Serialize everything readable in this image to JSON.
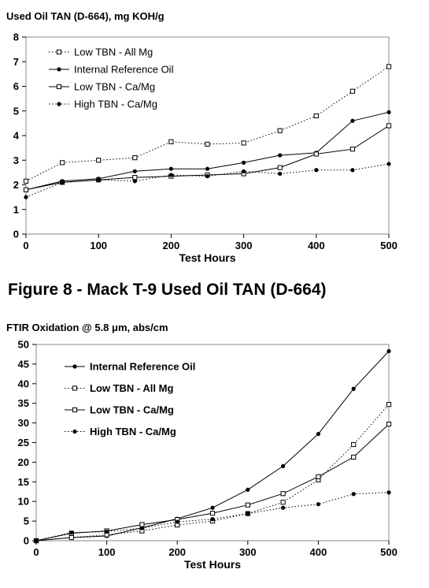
{
  "caption": "Figure 8 - Mack T-9 Used Oil TAN (D-664)",
  "chart_data": [
    {
      "type": "line",
      "title": "Used Oil TAN (D-664), mg KOH/g",
      "xlabel": "Test Hours",
      "ylabel": "",
      "xlim": [
        0,
        500
      ],
      "ylim": [
        0,
        8
      ],
      "xticks": [
        0,
        100,
        200,
        300,
        400,
        500
      ],
      "yticks": [
        0,
        1,
        2,
        3,
        4,
        5,
        6,
        7,
        8
      ],
      "grid": false,
      "legend_position": "top-left",
      "x": [
        0,
        50,
        100,
        150,
        200,
        250,
        300,
        350,
        400,
        450,
        500
      ],
      "series": [
        {
          "name": "Low TBN - All Mg",
          "line": "dotted",
          "marker": "open-square",
          "values": [
            2.15,
            2.9,
            3.0,
            3.1,
            3.75,
            3.65,
            3.7,
            4.2,
            4.8,
            5.8,
            6.8
          ]
        },
        {
          "name": "Internal Reference Oil",
          "line": "solid",
          "marker": "filled-circle",
          "values": [
            1.8,
            2.15,
            2.25,
            2.55,
            2.65,
            2.65,
            2.9,
            3.2,
            3.3,
            4.6,
            4.95
          ]
        },
        {
          "name": "Low TBN - Ca/Mg",
          "line": "solid",
          "marker": "open-square",
          "values": [
            1.8,
            2.1,
            2.2,
            2.3,
            2.35,
            2.4,
            2.45,
            2.7,
            3.25,
            3.45,
            4.4
          ]
        },
        {
          "name": "High TBN - Ca/Mg",
          "line": "dotted",
          "marker": "filled-circle",
          "values": [
            1.5,
            2.1,
            2.2,
            2.15,
            2.4,
            2.35,
            2.55,
            2.45,
            2.6,
            2.6,
            2.85
          ]
        }
      ]
    },
    {
      "type": "line",
      "title": "FTIR Oxidation @ 5.8 μm, abs/cm",
      "xlabel": "Test Hours",
      "ylabel": "",
      "xlim": [
        0,
        500
      ],
      "ylim": [
        0,
        50
      ],
      "xticks": [
        0,
        100,
        200,
        300,
        400,
        500
      ],
      "yticks": [
        0,
        5,
        10,
        15,
        20,
        25,
        30,
        35,
        40,
        45,
        50
      ],
      "grid": false,
      "legend_position": "top-left",
      "x": [
        0,
        50,
        100,
        150,
        200,
        250,
        300,
        350,
        400,
        450,
        500
      ],
      "series": [
        {
          "name": "Internal Reference Oil",
          "line": "solid",
          "marker": "filled-circle",
          "values": [
            0,
            0.8,
            1.2,
            3.3,
            5.6,
            8.4,
            13.0,
            19.0,
            27.2,
            38.7,
            48.3
          ]
        },
        {
          "name": "Low TBN - All Mg",
          "line": "dotted",
          "marker": "open-square",
          "values": [
            0,
            0.8,
            1.5,
            2.5,
            4.0,
            5.0,
            6.9,
            9.8,
            15.5,
            24.5,
            34.7
          ]
        },
        {
          "name": "Low TBN - Ca/Mg",
          "line": "solid",
          "marker": "open-square",
          "values": [
            0,
            1.9,
            2.5,
            4.1,
            5.4,
            7.0,
            9.1,
            12.0,
            16.3,
            21.3,
            29.7
          ]
        },
        {
          "name": "High TBN - Ca/Mg",
          "line": "dotted",
          "marker": "filled-circle",
          "values": [
            0,
            2.1,
            2.3,
            3.2,
            4.8,
            5.5,
            6.9,
            8.4,
            9.3,
            11.9,
            12.3
          ]
        }
      ]
    }
  ]
}
